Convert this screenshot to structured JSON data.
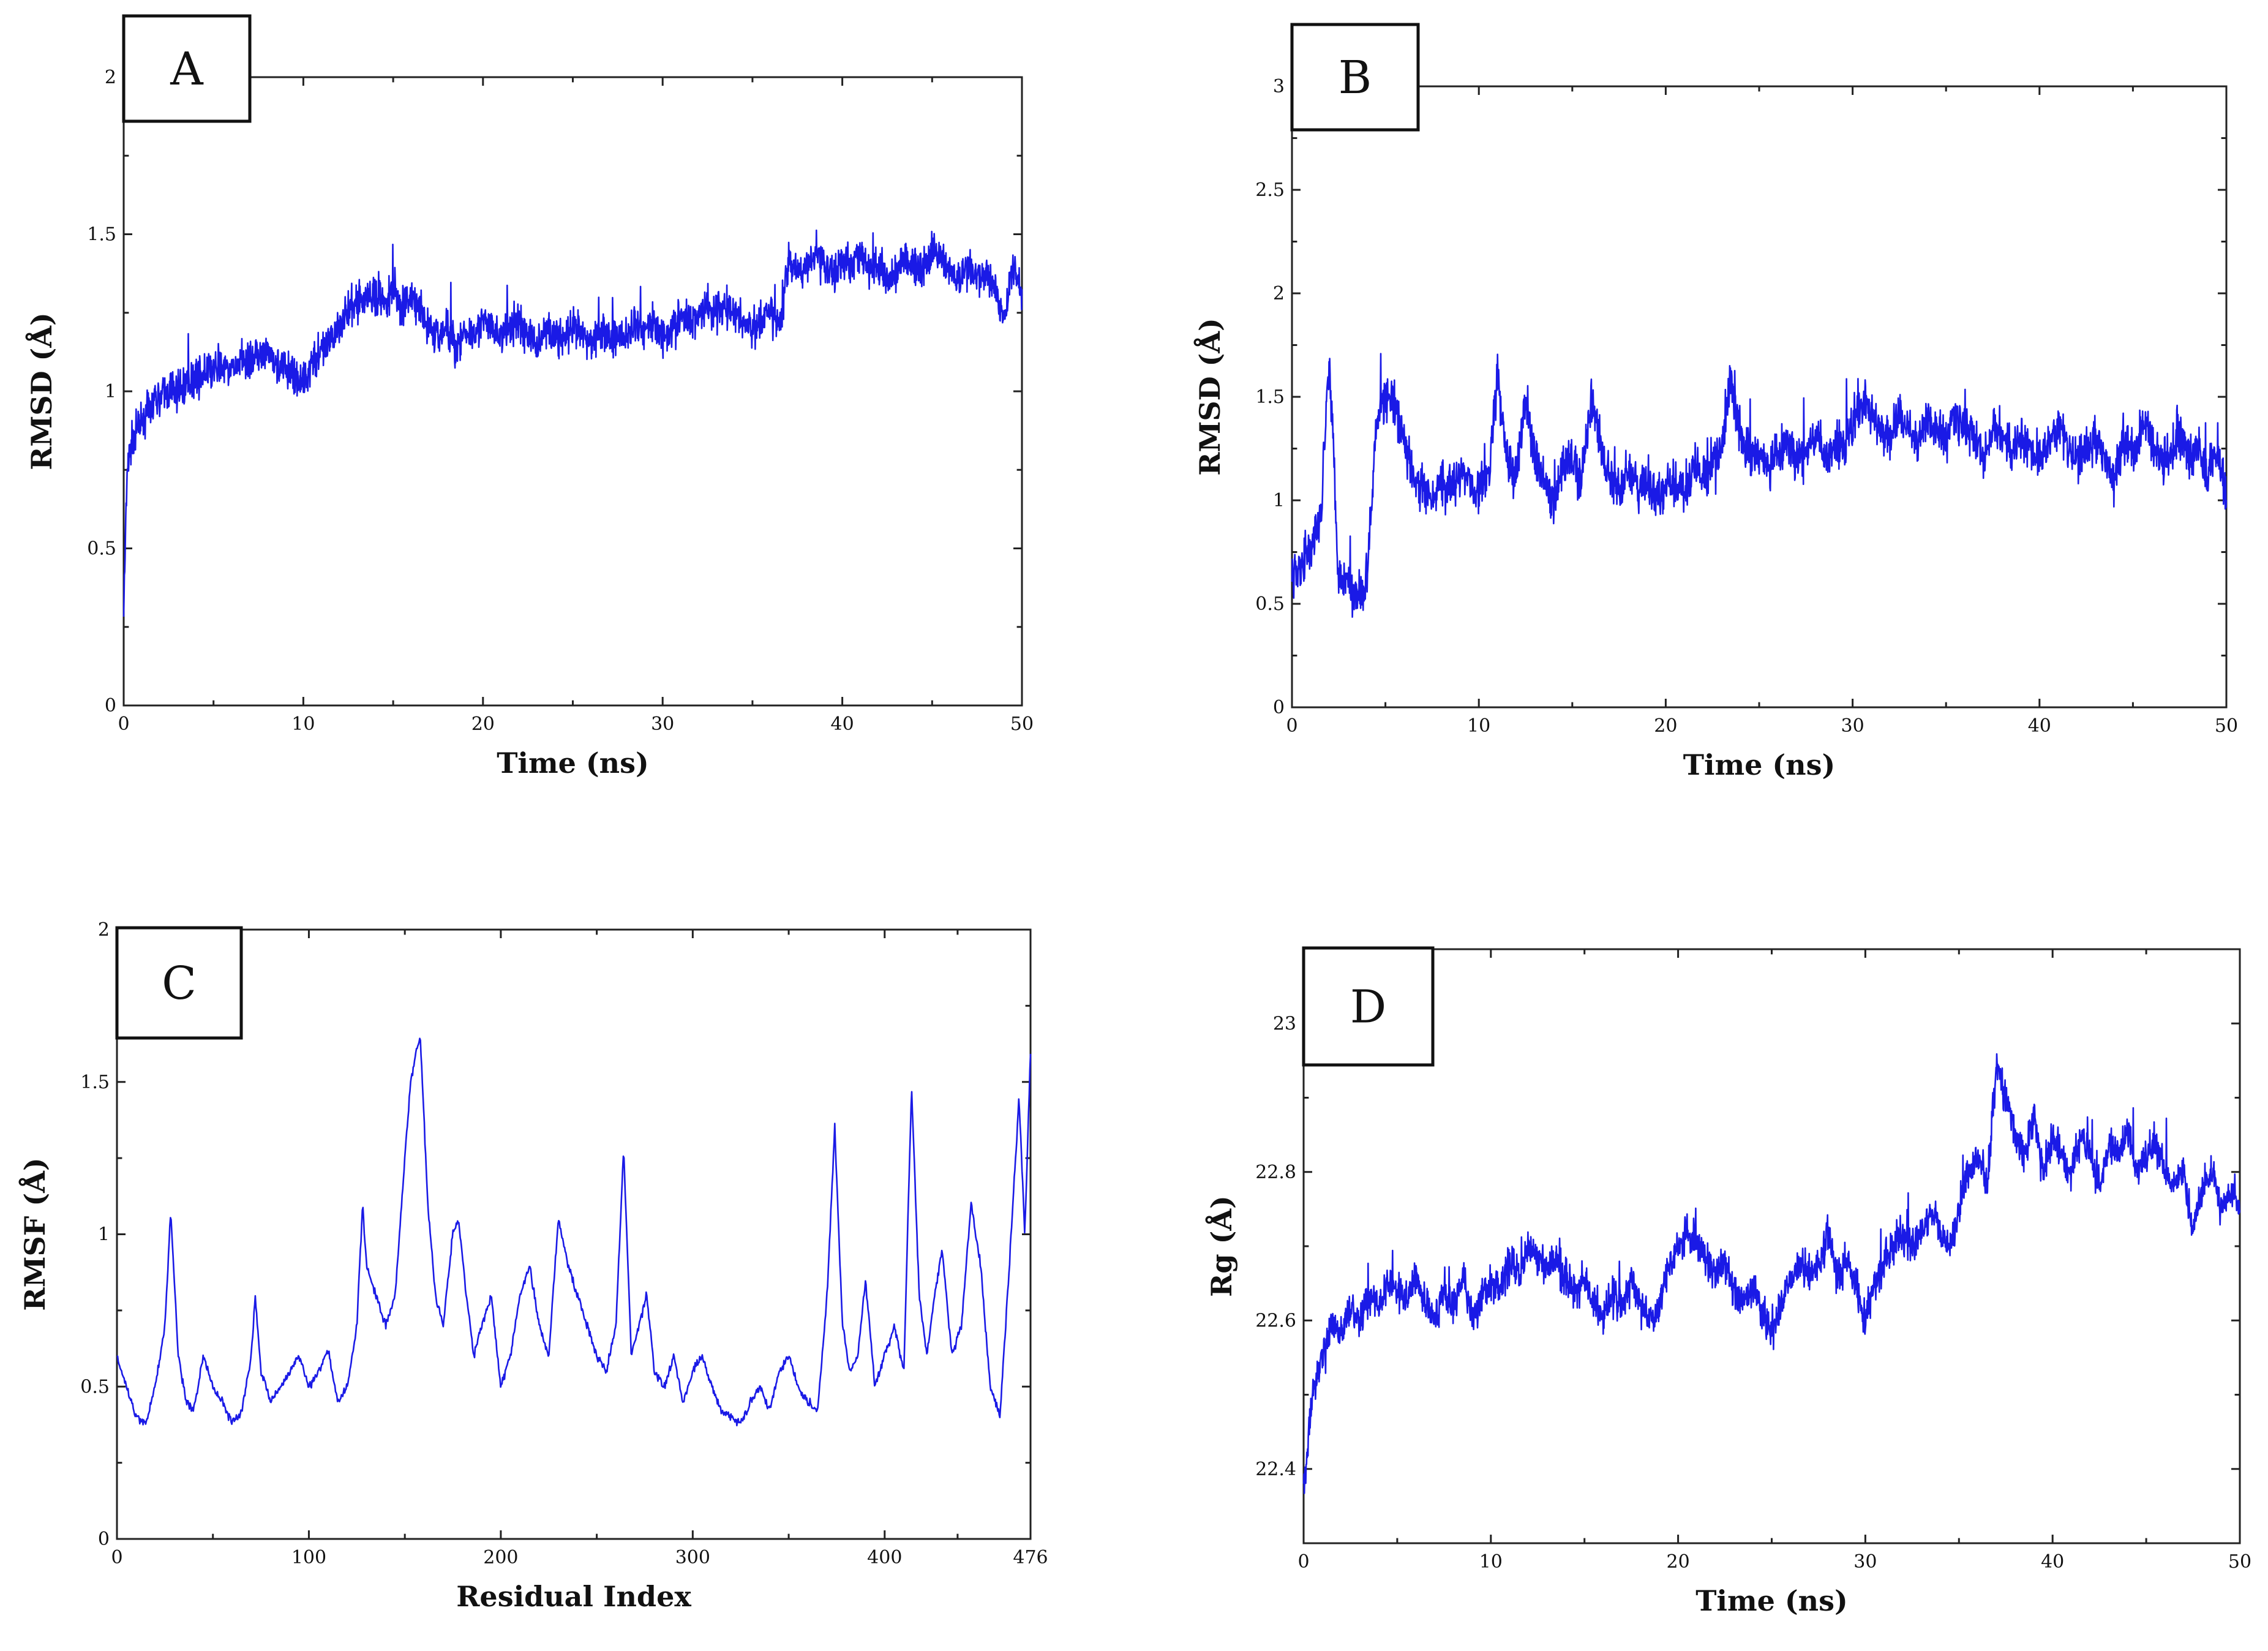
{
  "figure": {
    "line_color": "#1a1ae6"
  },
  "chart_data": [
    {
      "id": "A",
      "panel_label": "A",
      "type": "line",
      "title": "",
      "xlabel": "Time (ns)",
      "ylabel": "RMSD (Å)",
      "xlim": [
        0,
        50
      ],
      "ylim": [
        0,
        2
      ],
      "xticks": [
        0,
        10,
        20,
        30,
        40,
        50
      ],
      "xtick_labels": [
        "0",
        "10",
        "20",
        "30",
        "40",
        "50"
      ],
      "yticks": [
        0,
        0.5,
        1,
        1.5,
        2
      ],
      "ytick_labels": [
        "0",
        "0.5",
        "1",
        "1.5",
        "2"
      ],
      "series": [
        {
          "name": "RMSD",
          "x": [
            0,
            0.2,
            0.5,
            1,
            1.5,
            2,
            2.5,
            3,
            3.5,
            4,
            4.5,
            5,
            5.5,
            6,
            6.5,
            7,
            7.5,
            8,
            8.5,
            9,
            9.5,
            10,
            10.5,
            11,
            11.5,
            12,
            12.5,
            13,
            13.5,
            14,
            14.5,
            15,
            15.5,
            16,
            16.5,
            17,
            17.5,
            18,
            18.5,
            19,
            19.5,
            20,
            20.5,
            21,
            21.5,
            22,
            22.5,
            23,
            23.5,
            24,
            24.5,
            25,
            25.5,
            26,
            26.5,
            27,
            27.5,
            28,
            28.5,
            29,
            29.5,
            30,
            30.5,
            31,
            31.5,
            32,
            32.5,
            33,
            33.5,
            34,
            34.5,
            35,
            35.5,
            36,
            36.5,
            37,
            37.5,
            38,
            38.5,
            39,
            39.5,
            40,
            40.5,
            41,
            41.5,
            42,
            42.5,
            43,
            43.5,
            44,
            44.5,
            45,
            45.5,
            46,
            46.5,
            47,
            47.5,
            48,
            48.5,
            49,
            49.5,
            50
          ],
          "y": [
            0.3,
            0.75,
            0.85,
            0.9,
            0.95,
            0.98,
            1.0,
            1.0,
            1.02,
            1.05,
            1.05,
            1.07,
            1.08,
            1.06,
            1.1,
            1.1,
            1.1,
            1.12,
            1.08,
            1.07,
            1.05,
            1.02,
            1.1,
            1.12,
            1.15,
            1.22,
            1.25,
            1.28,
            1.3,
            1.3,
            1.28,
            1.32,
            1.27,
            1.3,
            1.25,
            1.2,
            1.18,
            1.2,
            1.15,
            1.18,
            1.2,
            1.22,
            1.2,
            1.18,
            1.2,
            1.22,
            1.18,
            1.15,
            1.2,
            1.18,
            1.16,
            1.2,
            1.18,
            1.15,
            1.2,
            1.18,
            1.16,
            1.18,
            1.2,
            1.2,
            1.22,
            1.18,
            1.2,
            1.24,
            1.22,
            1.25,
            1.28,
            1.25,
            1.27,
            1.25,
            1.22,
            1.2,
            1.22,
            1.25,
            1.2,
            1.42,
            1.38,
            1.4,
            1.45,
            1.4,
            1.38,
            1.42,
            1.4,
            1.45,
            1.38,
            1.4,
            1.35,
            1.38,
            1.42,
            1.4,
            1.38,
            1.45,
            1.42,
            1.38,
            1.35,
            1.4,
            1.36,
            1.38,
            1.34,
            1.2,
            1.42,
            1.3
          ]
        }
      ]
    },
    {
      "id": "B",
      "panel_label": "B",
      "type": "line",
      "title": "",
      "xlabel": "Time (ns)",
      "ylabel": "RMSD (Å)",
      "xlim": [
        0,
        50
      ],
      "ylim": [
        0,
        3
      ],
      "xticks": [
        0,
        10,
        20,
        30,
        40,
        50
      ],
      "xtick_labels": [
        "0",
        "10",
        "20",
        "30",
        "40",
        "50"
      ],
      "yticks": [
        0,
        0.5,
        1,
        1.5,
        2,
        2.5,
        3
      ],
      "ytick_labels": [
        "0",
        "0.5",
        "1",
        "1.5",
        "2",
        "2.5",
        "3"
      ],
      "series": [
        {
          "name": "RMSD",
          "x": [
            0,
            0.5,
            1,
            1.5,
            2,
            2.5,
            3,
            3.5,
            4,
            4.5,
            5,
            5.5,
            6,
            6.5,
            7,
            7.5,
            8,
            8.5,
            9,
            9.5,
            10,
            10.5,
            11,
            11.5,
            12,
            12.5,
            13,
            13.5,
            14,
            14.5,
            15,
            15.5,
            16,
            16.5,
            17,
            17.5,
            18,
            18.5,
            19,
            19.5,
            20,
            20.5,
            21,
            21.5,
            22,
            22.5,
            23,
            23.5,
            24,
            24.5,
            25,
            25.5,
            26,
            26.5,
            27,
            27.5,
            28,
            28.5,
            29,
            29.5,
            30,
            30.5,
            31,
            31.5,
            32,
            32.5,
            33,
            33.5,
            34,
            34.5,
            35,
            35.5,
            36,
            36.5,
            37,
            37.5,
            38,
            38.5,
            39,
            39.5,
            40,
            40.5,
            41,
            41.5,
            42,
            42.5,
            43,
            43.5,
            44,
            44.5,
            45,
            45.5,
            46,
            46.5,
            47,
            47.5,
            48,
            48.5,
            49,
            49.5,
            50
          ],
          "y": [
            0.65,
            0.7,
            0.75,
            0.9,
            1.7,
            0.65,
            0.6,
            0.55,
            0.62,
            1.4,
            1.5,
            1.45,
            1.3,
            1.1,
            1.05,
            1.0,
            1.1,
            1.05,
            1.15,
            1.1,
            1.05,
            1.1,
            1.6,
            1.2,
            1.1,
            1.5,
            1.2,
            1.1,
            1.0,
            1.15,
            1.2,
            1.1,
            1.5,
            1.25,
            1.1,
            1.05,
            1.15,
            1.05,
            1.1,
            1.0,
            1.05,
            1.1,
            1.05,
            1.15,
            1.1,
            1.2,
            1.25,
            1.6,
            1.3,
            1.2,
            1.25,
            1.15,
            1.2,
            1.3,
            1.2,
            1.25,
            1.3,
            1.2,
            1.25,
            1.3,
            1.35,
            1.5,
            1.4,
            1.35,
            1.3,
            1.4,
            1.35,
            1.3,
            1.4,
            1.35,
            1.3,
            1.4,
            1.35,
            1.3,
            1.2,
            1.35,
            1.3,
            1.25,
            1.3,
            1.25,
            1.2,
            1.3,
            1.35,
            1.25,
            1.2,
            1.25,
            1.3,
            1.2,
            1.1,
            1.3,
            1.2,
            1.4,
            1.3,
            1.2,
            1.25,
            1.35,
            1.2,
            1.3,
            1.1,
            1.25,
            1.0
          ]
        }
      ]
    },
    {
      "id": "C",
      "panel_label": "C",
      "type": "line",
      "title": "",
      "xlabel": "Residual Index",
      "ylabel": "RMSF (Å)",
      "xlim": [
        0,
        476
      ],
      "ylim": [
        0,
        2
      ],
      "xticks": [
        0,
        100,
        200,
        300,
        400,
        476
      ],
      "xtick_labels": [
        "0",
        "100",
        "200",
        "300",
        "400",
        "476"
      ],
      "yticks": [
        0,
        0.5,
        1,
        1.5,
        2
      ],
      "ytick_labels": [
        "0",
        "0.5",
        "1",
        "1.5",
        "2"
      ],
      "series": [
        {
          "name": "RMSF",
          "x": [
            0,
            5,
            10,
            15,
            20,
            25,
            28,
            32,
            36,
            40,
            45,
            50,
            55,
            60,
            65,
            70,
            72,
            75,
            80,
            85,
            90,
            95,
            100,
            105,
            110,
            115,
            120,
            125,
            128,
            130,
            135,
            140,
            145,
            150,
            153,
            156,
            158,
            162,
            166,
            170,
            175,
            178,
            182,
            186,
            190,
            195,
            200,
            205,
            210,
            215,
            220,
            225,
            230,
            235,
            240,
            245,
            250,
            255,
            260,
            264,
            268,
            272,
            276,
            280,
            285,
            290,
            295,
            300,
            305,
            310,
            315,
            320,
            325,
            330,
            335,
            340,
            345,
            350,
            355,
            360,
            365,
            370,
            374,
            378,
            382,
            386,
            390,
            395,
            400,
            405,
            410,
            414,
            418,
            422,
            426,
            430,
            435,
            440,
            445,
            450,
            455,
            460,
            465,
            470,
            473,
            476
          ],
          "y": [
            0.6,
            0.5,
            0.4,
            0.38,
            0.5,
            0.7,
            1.07,
            0.6,
            0.45,
            0.42,
            0.6,
            0.5,
            0.45,
            0.38,
            0.42,
            0.6,
            0.8,
            0.55,
            0.45,
            0.5,
            0.55,
            0.6,
            0.5,
            0.55,
            0.62,
            0.45,
            0.5,
            0.7,
            1.1,
            0.9,
            0.8,
            0.7,
            0.8,
            1.25,
            1.5,
            1.6,
            1.65,
            1.1,
            0.8,
            0.7,
            1.0,
            1.05,
            0.8,
            0.6,
            0.7,
            0.8,
            0.5,
            0.6,
            0.8,
            0.9,
            0.7,
            0.6,
            1.05,
            0.9,
            0.8,
            0.7,
            0.6,
            0.55,
            0.7,
            1.28,
            0.6,
            0.7,
            0.8,
            0.55,
            0.5,
            0.6,
            0.45,
            0.55,
            0.6,
            0.5,
            0.42,
            0.4,
            0.38,
            0.45,
            0.5,
            0.42,
            0.55,
            0.6,
            0.5,
            0.45,
            0.42,
            0.8,
            1.35,
            0.7,
            0.55,
            0.6,
            0.85,
            0.5,
            0.6,
            0.7,
            0.55,
            1.48,
            0.8,
            0.6,
            0.8,
            0.95,
            0.6,
            0.7,
            1.1,
            0.9,
            0.5,
            0.4,
            0.9,
            1.45,
            1.0,
            1.6
          ]
        }
      ]
    },
    {
      "id": "D",
      "panel_label": "D",
      "type": "line",
      "title": "",
      "xlabel": "Time (ns)",
      "ylabel": "Rg (Å)",
      "xlim": [
        0,
        50
      ],
      "ylim": [
        22.3,
        23.1
      ],
      "xticks": [
        0,
        10,
        20,
        30,
        40,
        50
      ],
      "xtick_labels": [
        "0",
        "10",
        "20",
        "30",
        "40",
        "50"
      ],
      "yticks": [
        22.4,
        22.6,
        22.8,
        23
      ],
      "ytick_labels": [
        "22.4",
        "22.6",
        "22.8",
        "23"
      ],
      "series": [
        {
          "name": "Rg",
          "x": [
            0,
            0.5,
            1,
            1.5,
            2,
            2.5,
            3,
            3.5,
            4,
            4.5,
            5,
            5.5,
            6,
            6.5,
            7,
            7.5,
            8,
            8.5,
            9,
            9.5,
            10,
            10.5,
            11,
            11.5,
            12,
            12.5,
            13,
            13.5,
            14,
            14.5,
            15,
            15.5,
            16,
            16.5,
            17,
            17.5,
            18,
            18.5,
            19,
            19.5,
            20,
            20.5,
            21,
            21.5,
            22,
            22.5,
            23,
            23.5,
            24,
            24.5,
            25,
            25.5,
            26,
            26.5,
            27,
            27.5,
            28,
            28.5,
            29,
            29.5,
            30,
            30.5,
            31,
            31.5,
            32,
            32.5,
            33,
            33.5,
            34,
            34.5,
            35,
            35.5,
            36,
            36.5,
            37,
            37.5,
            38,
            38.5,
            39,
            39.5,
            40,
            40.5,
            41,
            41.5,
            42,
            42.5,
            43,
            43.5,
            44,
            44.5,
            45,
            45.5,
            46,
            46.5,
            47,
            47.5,
            48,
            48.5,
            49,
            49.5,
            50
          ],
          "y": [
            22.38,
            22.5,
            22.55,
            22.6,
            22.58,
            22.62,
            22.6,
            22.63,
            22.62,
            22.65,
            22.64,
            22.63,
            22.66,
            22.62,
            22.6,
            22.64,
            22.62,
            22.66,
            22.6,
            22.63,
            22.65,
            22.64,
            22.68,
            22.66,
            22.7,
            22.68,
            22.67,
            22.68,
            22.66,
            22.64,
            22.66,
            22.63,
            22.6,
            22.64,
            22.62,
            22.65,
            22.62,
            22.6,
            22.62,
            22.68,
            22.7,
            22.72,
            22.7,
            22.68,
            22.66,
            22.68,
            22.64,
            22.62,
            22.65,
            22.6,
            22.58,
            22.62,
            22.65,
            22.68,
            22.66,
            22.68,
            22.72,
            22.66,
            22.68,
            22.65,
            22.6,
            22.65,
            22.68,
            22.7,
            22.72,
            22.7,
            22.72,
            22.75,
            22.72,
            22.7,
            22.75,
            22.8,
            22.82,
            22.78,
            22.95,
            22.9,
            22.85,
            22.82,
            22.88,
            22.8,
            22.85,
            22.82,
            22.8,
            22.85,
            22.82,
            22.78,
            22.84,
            22.82,
            22.86,
            22.8,
            22.82,
            22.84,
            22.8,
            22.78,
            22.8,
            22.72,
            22.78,
            22.8,
            22.75,
            22.78,
            22.76
          ]
        }
      ]
    }
  ]
}
